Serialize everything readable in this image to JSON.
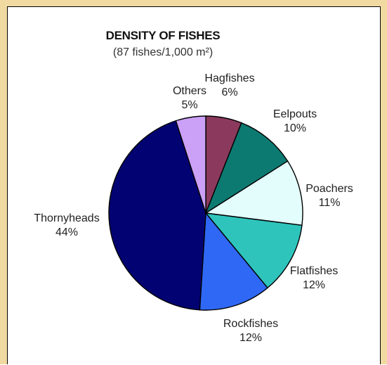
{
  "chart_data": {
    "type": "pie",
    "title": "DENSITY OF FISHES",
    "subtitle": "(87 fishes/1,000 m²)",
    "start_angle_deg": 0,
    "direction": "clockwise",
    "slices": [
      {
        "label": "Hagfishes",
        "value": 6,
        "display": "6%",
        "color": "#8b3a5d"
      },
      {
        "label": "Eelpouts",
        "value": 10,
        "display": "10%",
        "color": "#0d7a72"
      },
      {
        "label": "Poachers",
        "value": 11,
        "display": "11%",
        "color": "#e2fdfc"
      },
      {
        "label": "Flatfishes",
        "value": 12,
        "display": "12%",
        "color": "#2ec4bc"
      },
      {
        "label": "Rockfishes",
        "value": 12,
        "display": "12%",
        "color": "#2f68f4"
      },
      {
        "label": "Thornyheads",
        "value": 44,
        "display": "44%",
        "color": "#030272"
      },
      {
        "label": "Others",
        "value": 5,
        "display": "5%",
        "color": "#cba0f7"
      }
    ]
  }
}
